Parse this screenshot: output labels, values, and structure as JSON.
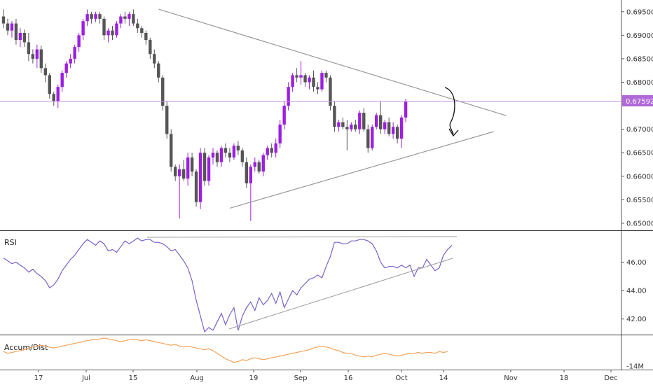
{
  "colors": {
    "up": "#9c1fe0",
    "down": "#555555",
    "price_line": "#cf8fe8",
    "price_badge": "#b06ad8",
    "trend": "#9a9a9a",
    "rsi": "#7b61c9",
    "accum": "#f5a25a",
    "separator": "#333333"
  },
  "price_axis": {
    "ticks": [
      "0.69500",
      "0.69000",
      "0.68500",
      "0.68000",
      "0.67000",
      "0.66500",
      "0.66000",
      "0.65500",
      "0.65000"
    ],
    "current_price": "0.67592"
  },
  "rsi_panel": {
    "label": "RSI",
    "ticks": [
      "46.00",
      "44.00",
      "42.00"
    ]
  },
  "accum_panel": {
    "label": "Accum/Dist",
    "ticks": [
      "-14M"
    ]
  },
  "time_axis": {
    "labels": [
      "17",
      "Jul",
      "15",
      "Aug",
      "19",
      "Sep",
      "16",
      "Oct",
      "14",
      "Nov",
      "18",
      "Dec"
    ]
  },
  "chart_data": [
    {
      "type": "candlestick",
      "title": "",
      "ylim": [
        0.6485,
        0.6975
      ],
      "current_price": 0.67592,
      "candles": [
        [
          0.694,
          0.6955,
          0.6915,
          0.6925
        ],
        [
          0.6925,
          0.6935,
          0.69,
          0.691
        ],
        [
          0.691,
          0.693,
          0.6895,
          0.6925
        ],
        [
          0.6925,
          0.6935,
          0.688,
          0.689
        ],
        [
          0.689,
          0.6915,
          0.6875,
          0.6905
        ],
        [
          0.6905,
          0.6912,
          0.6875,
          0.6885
        ],
        [
          0.6885,
          0.6905,
          0.6845,
          0.686
        ],
        [
          0.686,
          0.687,
          0.684,
          0.685
        ],
        [
          0.685,
          0.688,
          0.683,
          0.687
        ],
        [
          0.687,
          0.6878,
          0.682,
          0.683
        ],
        [
          0.683,
          0.684,
          0.68,
          0.6815
        ],
        [
          0.6815,
          0.682,
          0.6765,
          0.6775
        ],
        [
          0.6775,
          0.678,
          0.675,
          0.676
        ],
        [
          0.676,
          0.6795,
          0.6745,
          0.679
        ],
        [
          0.679,
          0.6825,
          0.678,
          0.682
        ],
        [
          0.682,
          0.6845,
          0.681,
          0.684
        ],
        [
          0.684,
          0.686,
          0.683,
          0.685
        ],
        [
          0.685,
          0.688,
          0.684,
          0.6875
        ],
        [
          0.6875,
          0.6905,
          0.6865,
          0.69
        ],
        [
          0.69,
          0.6935,
          0.689,
          0.693
        ],
        [
          0.693,
          0.6955,
          0.692,
          0.6945
        ],
        [
          0.6945,
          0.695,
          0.6925,
          0.6935
        ],
        [
          0.6935,
          0.695,
          0.6928,
          0.6945
        ],
        [
          0.6945,
          0.695,
          0.6925,
          0.6935
        ],
        [
          0.6935,
          0.694,
          0.689,
          0.69
        ],
        [
          0.69,
          0.6915,
          0.6885,
          0.691
        ],
        [
          0.691,
          0.692,
          0.689,
          0.69
        ],
        [
          0.69,
          0.693,
          0.6895,
          0.6925
        ],
        [
          0.6925,
          0.6945,
          0.6915,
          0.694
        ],
        [
          0.694,
          0.695,
          0.6925,
          0.6935
        ],
        [
          0.6935,
          0.695,
          0.692,
          0.6945
        ],
        [
          0.6945,
          0.6955,
          0.692,
          0.6925
        ],
        [
          0.6925,
          0.6935,
          0.6905,
          0.6915
        ],
        [
          0.6915,
          0.692,
          0.6895,
          0.6905
        ],
        [
          0.6905,
          0.691,
          0.688,
          0.689
        ],
        [
          0.689,
          0.6895,
          0.685,
          0.686
        ],
        [
          0.686,
          0.687,
          0.683,
          0.684
        ],
        [
          0.684,
          0.6845,
          0.68,
          0.681
        ],
        [
          0.681,
          0.6815,
          0.674,
          0.675
        ],
        [
          0.675,
          0.676,
          0.668,
          0.669
        ],
        [
          0.669,
          0.67,
          0.661,
          0.662
        ],
        [
          0.662,
          0.6625,
          0.659,
          0.66
        ],
        [
          0.66,
          0.6625,
          0.651,
          0.6615
        ],
        [
          0.6615,
          0.6635,
          0.659,
          0.6595
        ],
        [
          0.6595,
          0.665,
          0.658,
          0.664
        ],
        [
          0.664,
          0.665,
          0.66,
          0.661
        ],
        [
          0.661,
          0.6615,
          0.6535,
          0.6545
        ],
        [
          0.6545,
          0.666,
          0.653,
          0.665
        ],
        [
          0.665,
          0.666,
          0.658,
          0.659
        ],
        [
          0.659,
          0.6645,
          0.658,
          0.664
        ],
        [
          0.664,
          0.666,
          0.6625,
          0.665
        ],
        [
          0.665,
          0.6655,
          0.662,
          0.663
        ],
        [
          0.663,
          0.6665,
          0.662,
          0.666
        ],
        [
          0.666,
          0.667,
          0.664,
          0.665
        ],
        [
          0.665,
          0.666,
          0.663,
          0.664
        ],
        [
          0.664,
          0.667,
          0.6635,
          0.6665
        ],
        [
          0.6665,
          0.6675,
          0.6645,
          0.6655
        ],
        [
          0.6655,
          0.666,
          0.662,
          0.663
        ],
        [
          0.663,
          0.664,
          0.6575,
          0.6585
        ],
        [
          0.6585,
          0.6625,
          0.6505,
          0.662
        ],
        [
          0.662,
          0.664,
          0.661,
          0.663
        ],
        [
          0.663,
          0.6635,
          0.6605,
          0.661
        ],
        [
          0.661,
          0.665,
          0.66,
          0.6645
        ],
        [
          0.6645,
          0.6665,
          0.6635,
          0.666
        ],
        [
          0.666,
          0.667,
          0.664,
          0.665
        ],
        [
          0.665,
          0.668,
          0.664,
          0.667
        ],
        [
          0.667,
          0.672,
          0.666,
          0.671
        ],
        [
          0.671,
          0.676,
          0.67,
          0.675
        ],
        [
          0.675,
          0.68,
          0.674,
          0.679
        ],
        [
          0.679,
          0.682,
          0.678,
          0.6815
        ],
        [
          0.6815,
          0.683,
          0.68,
          0.681
        ],
        [
          0.681,
          0.6845,
          0.6795,
          0.6815
        ],
        [
          0.6815,
          0.682,
          0.679,
          0.68
        ],
        [
          0.68,
          0.6815,
          0.6785,
          0.681
        ],
        [
          0.681,
          0.6825,
          0.678,
          0.679
        ],
        [
          0.679,
          0.68,
          0.6775,
          0.6785
        ],
        [
          0.6785,
          0.6825,
          0.678,
          0.682
        ],
        [
          0.682,
          0.6825,
          0.68,
          0.681
        ],
        [
          0.681,
          0.6815,
          0.674,
          0.675
        ],
        [
          0.675,
          0.676,
          0.6695,
          0.6705
        ],
        [
          0.6705,
          0.672,
          0.6695,
          0.6715
        ],
        [
          0.6715,
          0.6725,
          0.67,
          0.6705
        ],
        [
          0.6705,
          0.672,
          0.6655,
          0.67
        ],
        [
          0.67,
          0.6715,
          0.6695,
          0.671
        ],
        [
          0.671,
          0.672,
          0.6695,
          0.67
        ],
        [
          0.67,
          0.674,
          0.669,
          0.6735
        ],
        [
          0.6735,
          0.6745,
          0.6695,
          0.67
        ],
        [
          0.67,
          0.671,
          0.665,
          0.666
        ],
        [
          0.666,
          0.671,
          0.6655,
          0.6705
        ],
        [
          0.6705,
          0.6735,
          0.67,
          0.673
        ],
        [
          0.673,
          0.676,
          0.669,
          0.67
        ],
        [
          0.67,
          0.672,
          0.669,
          0.6715
        ],
        [
          0.6715,
          0.6725,
          0.6685,
          0.669
        ],
        [
          0.669,
          0.6715,
          0.668,
          0.6705
        ],
        [
          0.6705,
          0.671,
          0.667,
          0.668
        ],
        [
          0.668,
          0.673,
          0.666,
          0.6725
        ],
        [
          0.6725,
          0.6765,
          0.6715,
          0.6759
        ]
      ],
      "trendlines": [
        {
          "from": [
            37,
            0.69555
          ],
          "to": [
            120,
            0.6729
          ]
        },
        {
          "from": [
            54,
            0.6532
          ],
          "to": [
            117,
            0.6695
          ]
        }
      ]
    },
    {
      "type": "line",
      "title": "RSI",
      "ylim": [
        40.9,
        48.2
      ],
      "y": [
        46.3,
        46.1,
        45.9,
        46.0,
        45.8,
        45.6,
        45.3,
        45.5,
        45.2,
        45.0,
        44.7,
        44.2,
        44.4,
        44.8,
        45.4,
        45.8,
        46.2,
        46.5,
        46.9,
        47.3,
        47.6,
        47.4,
        47.2,
        47.5,
        47.3,
        46.8,
        46.9,
        46.7,
        47.1,
        47.5,
        47.3,
        47.5,
        47.7,
        47.5,
        47.6,
        47.6,
        47.4,
        47.4,
        47.3,
        47.1,
        46.8,
        46.9,
        46.5,
        46.1,
        45.6,
        44.7,
        43.3,
        42.2,
        41.1,
        41.4,
        41.2,
        41.8,
        42.4,
        41.6,
        42.3,
        42.8,
        41.2,
        42.2,
        42.8,
        43.2,
        42.6,
        43.5,
        43.0,
        43.3,
        43.8,
        43.1,
        43.9,
        42.8,
        43.4,
        44.0,
        43.7,
        44.2,
        44.5,
        44.8,
        44.9,
        45.1,
        44.9,
        45.7,
        46.4,
        47.4,
        47.4,
        47.3,
        47.3,
        47.5,
        47.5,
        47.6,
        47.6,
        47.5,
        47.3,
        46.8,
        46.0,
        45.6,
        45.7,
        45.7,
        45.6,
        45.8,
        45.6,
        45.8,
        45.0,
        45.6,
        45.6,
        46.2,
        45.8,
        45.4,
        45.6,
        46.5,
        46.9,
        47.2
      ]
    },
    {
      "type": "area",
      "title": "Accum/Dist",
      "ylim": [
        -14.2,
        -12.3
      ],
      "y": [
        -13.2,
        -13.3,
        -13.25,
        -13.2,
        -13.15,
        -13.1,
        -13.0,
        -12.95,
        -12.9,
        -12.85,
        -12.9,
        -12.95,
        -13.0,
        -12.95,
        -12.9,
        -12.85,
        -12.8,
        -12.75,
        -12.7,
        -12.65,
        -12.6,
        -12.55,
        -12.55,
        -12.5,
        -12.45,
        -12.5,
        -12.55,
        -12.6,
        -12.65,
        -12.6,
        -12.55,
        -12.5,
        -12.55,
        -12.6,
        -12.55,
        -12.6,
        -12.65,
        -12.7,
        -12.75,
        -12.8,
        -12.85,
        -12.8,
        -12.9,
        -12.95,
        -12.9,
        -12.95,
        -13.0,
        -13.05,
        -13.1,
        -13.05,
        -13.15,
        -13.3,
        -13.45,
        -13.6,
        -13.7,
        -13.8,
        -13.75,
        -13.65,
        -13.7,
        -13.6,
        -13.55,
        -13.6,
        -13.65,
        -13.6,
        -13.55,
        -13.5,
        -13.45,
        -13.4,
        -13.35,
        -13.3,
        -13.25,
        -13.2,
        -13.15,
        -13.1,
        -13.0,
        -12.95,
        -12.9,
        -12.95,
        -13.0,
        -13.1,
        -13.15,
        -13.25,
        -13.3,
        -13.3,
        -13.4,
        -13.45,
        -13.5,
        -13.45,
        -13.5,
        -13.4,
        -13.35,
        -13.3,
        -13.35,
        -13.4,
        -13.45,
        -13.4,
        -13.35,
        -13.3,
        -13.3,
        -13.25,
        -13.3,
        -13.25,
        -13.25,
        -13.3,
        -13.2,
        -13.25,
        -13.2
      ]
    }
  ]
}
